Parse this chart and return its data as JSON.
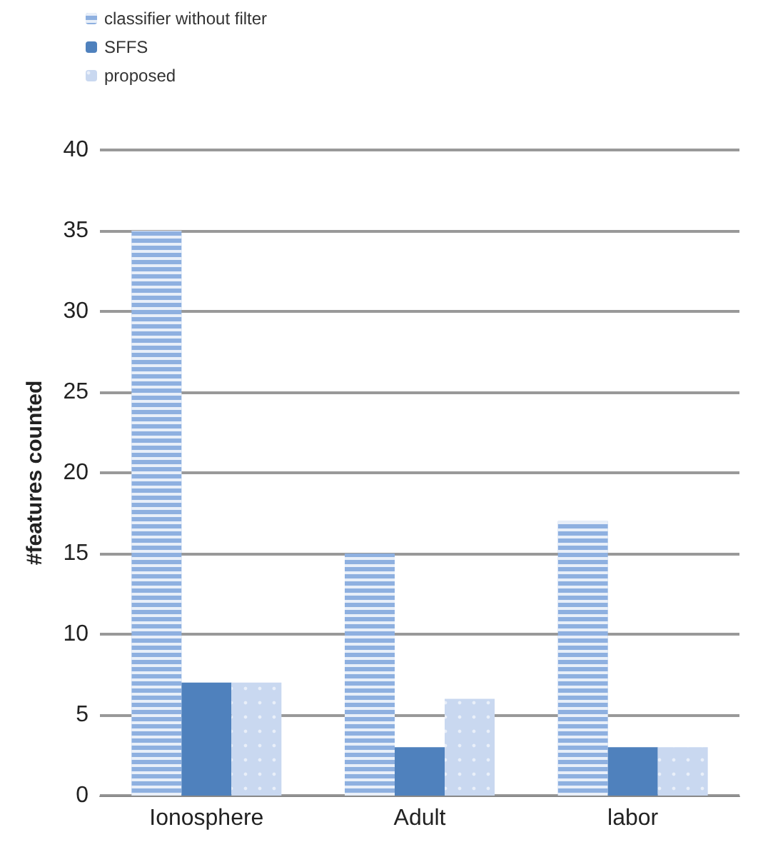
{
  "chart_data": {
    "type": "bar",
    "ylabel": "#features counted",
    "categories": [
      "Ionosphere",
      "Adult",
      "labor"
    ],
    "series": [
      {
        "name": "classifier without filter",
        "color": "#8eb0e0",
        "values": [
          35,
          15,
          17
        ]
      },
      {
        "name": "SFFS",
        "color": "#4f81bd",
        "values": [
          7,
          3,
          3
        ]
      },
      {
        "name": "proposed",
        "color": "#c9d8f0",
        "values": [
          7,
          6,
          3
        ]
      }
    ],
    "ylim": [
      0,
      40
    ],
    "yticks": [
      0,
      5,
      10,
      15,
      20,
      25,
      30,
      35,
      40
    ],
    "grid": "y",
    "legend": "top left"
  }
}
